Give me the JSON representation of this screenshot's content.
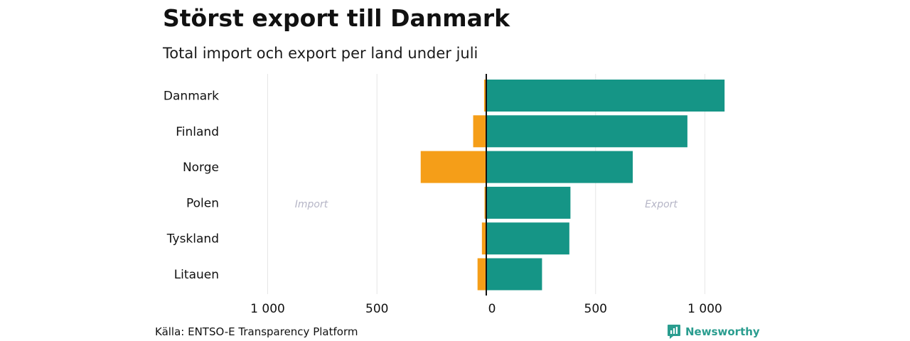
{
  "title": "Störst export till Danmark",
  "subtitle": "Total import och export per land under juli",
  "source": "Källa: ENTSO-E Transparency Platform",
  "logo": {
    "name": "Newsworthy",
    "icon": "newsworthy-logo-icon"
  },
  "colors": {
    "import": "#f59e18",
    "export": "#159586",
    "grid": "#e6e6e6",
    "axis": "#111111",
    "annotation": "#b5b5c6"
  },
  "chart_data": {
    "type": "bar",
    "orientation": "horizontal-diverging",
    "categories": [
      "Danmark",
      "Finland",
      "Norge",
      "Polen",
      "Tyskland",
      "Litauen"
    ],
    "series": [
      {
        "name": "Import",
        "values": [
          -10,
          -60,
          -300,
          -8,
          -20,
          -40
        ]
      },
      {
        "name": "Export",
        "values": [
          1090,
          920,
          670,
          385,
          380,
          255
        ]
      }
    ],
    "xlim": [
      -1000,
      1000
    ],
    "xticks": [
      {
        "value": -1000,
        "label": "1 000"
      },
      {
        "value": -500,
        "label": "500"
      },
      {
        "value": 0,
        "label": "0"
      },
      {
        "value": 500,
        "label": "500"
      },
      {
        "value": 1000,
        "label": "1 000"
      }
    ],
    "annotations": [
      {
        "text": "Import",
        "x": -800
      },
      {
        "text": "Export",
        "x": 800
      }
    ],
    "grid": true,
    "legend": "none"
  }
}
